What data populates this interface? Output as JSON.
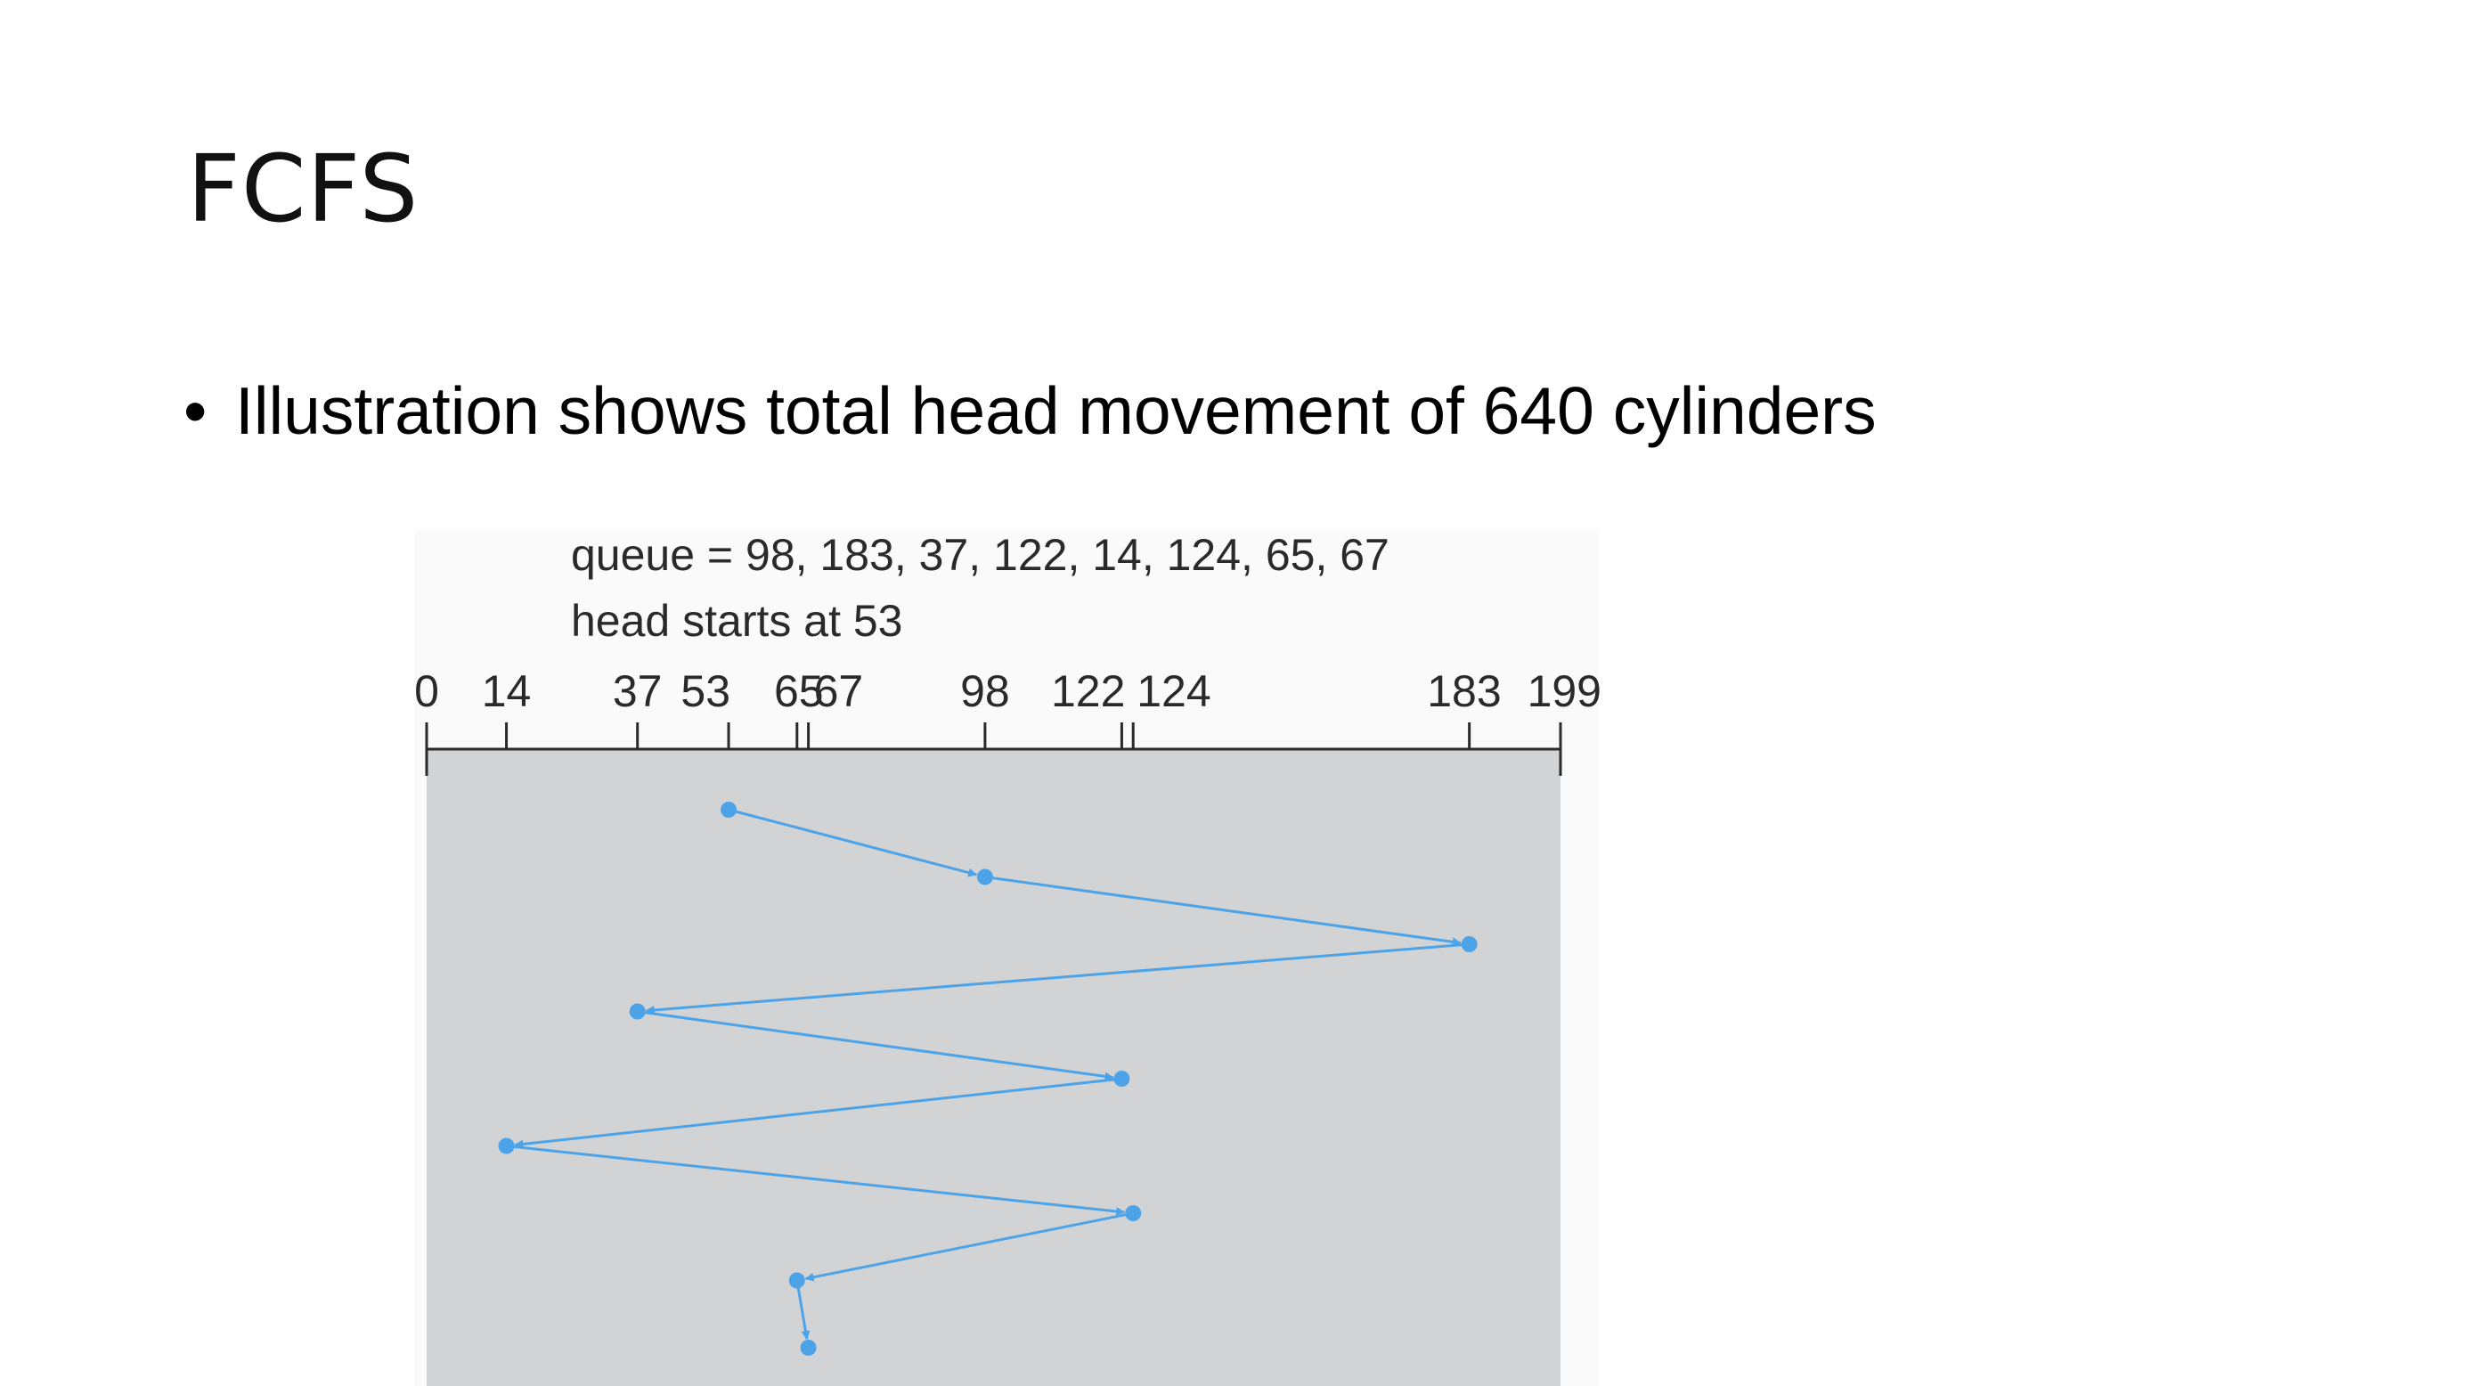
{
  "slide": {
    "title": "FCFS",
    "bullet_marker": "•",
    "bullet_text": "Illustration shows total head movement of 640 cylinders"
  },
  "figure": {
    "queue_line": "queue = 98, 183, 37, 122, 14, 124, 65, 67",
    "head_line": "head starts at 53",
    "colors": {
      "panel": "#d1d3d4",
      "path": "#4da3e8",
      "axis": "#2a2a2a"
    },
    "tick_labels": [
      {
        "value": 0,
        "label": "0"
      },
      {
        "value": 14,
        "label": "14"
      },
      {
        "value": 37,
        "label": "37"
      },
      {
        "value": 53,
        "label": "53"
      },
      {
        "value": 65,
        "label": "65"
      },
      {
        "value": 67,
        "label": "67"
      },
      {
        "value": 98,
        "label": "98"
      },
      {
        "value": 122,
        "label": "122"
      },
      {
        "value": 124,
        "label": "124"
      },
      {
        "value": 183,
        "label": "183"
      },
      {
        "value": 199,
        "label": "199"
      }
    ],
    "axis_range": [
      0,
      199
    ],
    "head_path": [
      53,
      98,
      183,
      37,
      122,
      14,
      124,
      65,
      67
    ]
  }
}
